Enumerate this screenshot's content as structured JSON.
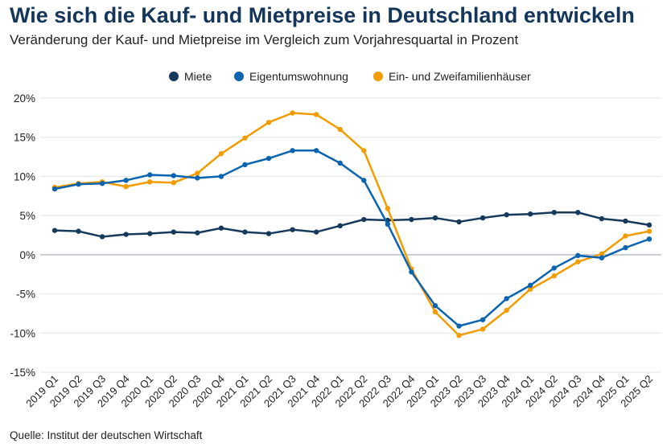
{
  "title": "Wie sich die Kauf- und Mietpreise in Deutschland entwickeln",
  "subtitle": "Veränderung der Kauf- und Mietpreise im Vergleich zum Vorjahresquartal in Prozent",
  "source": "Quelle: Institut der deutschen Wirtschaft",
  "chart_data": {
    "type": "line",
    "title": "Wie sich die Kauf- und Mietpreise in Deutschland entwickeln",
    "ylim": [
      -15,
      20
    ],
    "yticks": [
      20,
      15,
      10,
      5,
      0,
      -5,
      -10,
      -15
    ],
    "ytick_labels": [
      "20%",
      "15%",
      "10%",
      "5%",
      "0%",
      "-5%",
      "-10%",
      "-15%"
    ],
    "grid": true,
    "legend": "top",
    "categories": [
      "2019 Q1",
      "2019 Q2",
      "2019 Q3",
      "2019 Q4",
      "2020 Q1",
      "2020 Q2",
      "2020 Q3",
      "2020 Q4",
      "2021 Q1",
      "2021 Q2",
      "2021 Q3",
      "2021 Q4",
      "2022 Q1",
      "2022 Q2",
      "2022 Q3",
      "2022 Q4",
      "2023 Q1",
      "2023 Q2",
      "2023 Q3",
      "2023 Q4",
      "2024 Q1",
      "2024 Q2",
      "2024 Q3",
      "2024 Q4",
      "2025 Q1",
      "2025 Q2"
    ],
    "series": [
      {
        "name": "Miete",
        "color": "#163a5c",
        "values": [
          3.1,
          3.0,
          2.3,
          2.6,
          2.7,
          2.9,
          2.8,
          3.4,
          2.9,
          2.7,
          3.2,
          2.9,
          3.7,
          4.5,
          4.4,
          4.5,
          4.7,
          4.2,
          4.7,
          5.1,
          5.2,
          5.4,
          5.4,
          4.6,
          4.3,
          3.8
        ]
      },
      {
        "name": "Eigentumswohnung",
        "color": "#0a64b0",
        "values": [
          8.4,
          9.0,
          9.1,
          9.5,
          10.2,
          10.1,
          9.8,
          10.0,
          11.5,
          12.3,
          13.3,
          13.3,
          11.7,
          9.5,
          3.9,
          -2.2,
          -6.5,
          -9.1,
          -8.3,
          -5.6,
          -3.9,
          -1.7,
          -0.1,
          -0.4,
          0.9,
          2.0
        ]
      },
      {
        "name": "Ein- und Zweifamilienhäuser",
        "color": "#f39c00",
        "values": [
          8.6,
          9.1,
          9.3,
          8.7,
          9.3,
          9.2,
          10.4,
          12.9,
          14.9,
          16.9,
          18.1,
          17.9,
          16.0,
          13.3,
          5.9,
          -1.8,
          -7.3,
          -10.3,
          -9.5,
          -7.1,
          -4.4,
          -2.7,
          -0.9,
          0.1,
          2.4,
          3.0
        ]
      }
    ]
  }
}
